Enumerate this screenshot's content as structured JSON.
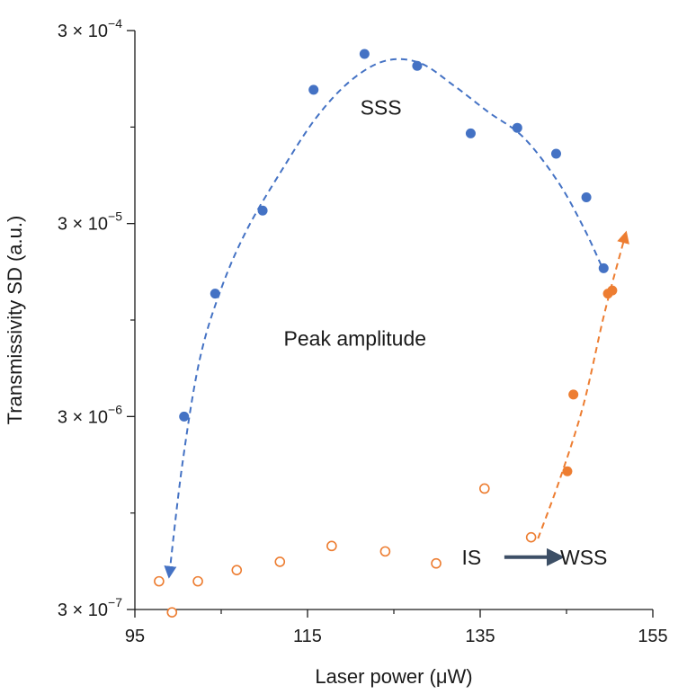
{
  "chart_data": {
    "type": "scatter",
    "title": "",
    "xlabel": "Laser power (μW)",
    "ylabel": "Transmissivity SD (a.u.)",
    "xscale": "linear",
    "yscale": "log",
    "xlim": [
      95,
      155
    ],
    "ylim": [
      3e-07,
      0.0003
    ],
    "x_ticks": [
      95,
      115,
      135,
      155
    ],
    "y_ticks": [
      {
        "value": 3e-07,
        "mantissa": "3 × 10",
        "exponent": "−7"
      },
      {
        "value": 3e-06,
        "mantissa": "3 × 10",
        "exponent": "−6"
      },
      {
        "value": 3e-05,
        "mantissa": "3 × 10",
        "exponent": "−5"
      },
      {
        "value": 0.0003,
        "mantissa": "3 × 10",
        "exponent": "−4"
      }
    ],
    "series": [
      {
        "name": "SSS",
        "marker": "filled-circle",
        "color": "#4472c4",
        "x": [
          100.7,
          104.3,
          109.8,
          115.7,
          121.6,
          127.7,
          133.9,
          139.3,
          143.8,
          147.3,
          149.3
        ],
        "y": [
          3e-06,
          1.3e-05,
          3.5e-05,
          0.000148,
          0.000227,
          0.000197,
          8.8e-05,
          9.4e-05,
          6.9e-05,
          4.1e-05,
          1.76e-05
        ]
      },
      {
        "name": "IS",
        "marker": "open-circle",
        "color": "#ed7d31",
        "x": [
          97.8,
          99.3,
          102.3,
          106.8,
          111.8,
          117.8,
          124.0,
          129.9,
          135.5,
          140.9
        ],
        "y": [
          4.2e-07,
          2.9e-07,
          4.2e-07,
          4.8e-07,
          5.3e-07,
          6.4e-07,
          6e-07,
          5.2e-07,
          1.27e-06,
          7.1e-07
        ]
      },
      {
        "name": "WSS",
        "marker": "filled-circle",
        "color": "#ed7d31",
        "x": [
          145.1,
          145.8,
          149.8,
          150.3
        ],
        "y": [
          1.56e-06,
          3.9e-06,
          1.3e-05,
          1.35e-05
        ]
      }
    ],
    "guide_curves": [
      {
        "name": "SSS trend",
        "style": "dashed",
        "color": "#4472c4",
        "arrow_at": "start",
        "x": [
          99.0,
          100.5,
          102.5,
          105.0,
          108.0,
          112.0,
          116.0,
          120.0,
          124.0,
          128.0,
          132.0,
          136.0,
          140.0,
          144.0,
          147.0,
          149.2
        ],
        "y": [
          4.6e-07,
          1.7e-06,
          5.9e-06,
          1.38e-05,
          2.8e-05,
          5.65e-05,
          0.000106,
          0.000165,
          0.000209,
          0.000204,
          0.000155,
          0.000113,
          8.4e-05,
          4.95e-05,
          2.85e-05,
          1.75e-05
        ]
      },
      {
        "name": "WSS trend",
        "style": "dashed",
        "color": "#ed7d31",
        "arrow_at": "end",
        "x": [
          141.7,
          144.3,
          147.0,
          149.4,
          151.8
        ],
        "y": [
          7e-07,
          1.45e-06,
          3.5e-06,
          1.03e-05,
          2.6e-05
        ]
      }
    ],
    "annotations": [
      {
        "text": "SSS",
        "x": 123.5,
        "y": 0.00012
      },
      {
        "text": "Peak amplitude",
        "x": 120.5,
        "y": 7.6e-06
      },
      {
        "text": "IS",
        "x": 134.0,
        "y": 5.6e-07
      },
      {
        "text": "WSS",
        "x": 147.0,
        "y": 5.6e-07
      }
    ],
    "transition_arrow": {
      "from_x": 137.8,
      "to_x": 145.0,
      "y": 5.6e-07,
      "color": "#3d4f66"
    }
  }
}
